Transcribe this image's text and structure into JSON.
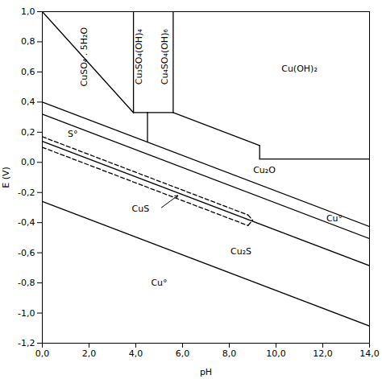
{
  "chart_data": {
    "type": "line",
    "xlabel": "pH",
    "ylabel": "E (V)",
    "xlim": [
      0,
      14
    ],
    "ylim": [
      -1.2,
      1.0
    ],
    "xticks": [
      {
        "value": 0,
        "label": "0,0"
      },
      {
        "value": 2,
        "label": "2,0"
      },
      {
        "value": 4,
        "label": "4,0"
      },
      {
        "value": 6,
        "label": "6,0"
      },
      {
        "value": 8,
        "label": "8,0"
      },
      {
        "value": 10,
        "label": "10,0"
      },
      {
        "value": 12,
        "label": "12,0"
      },
      {
        "value": 14,
        "label": "14,0"
      }
    ],
    "yticks": [
      {
        "value": -1.2,
        "label": "-1,2"
      },
      {
        "value": -1.0,
        "label": "-1,0"
      },
      {
        "value": -0.8,
        "label": "-0,8"
      },
      {
        "value": -0.6,
        "label": "-0,6"
      },
      {
        "value": -0.4,
        "label": "-0,4"
      },
      {
        "value": -0.2,
        "label": "-0,2"
      },
      {
        "value": 0.0,
        "label": "0,0"
      },
      {
        "value": 0.2,
        "label": "0,2"
      },
      {
        "value": 0.4,
        "label": "0,4"
      },
      {
        "value": 0.6,
        "label": "0,6"
      },
      {
        "value": 0.8,
        "label": "0,8"
      },
      {
        "value": 1.0,
        "label": "1,0"
      }
    ],
    "grid": false,
    "series": [
      {
        "x": [
          0,
          14
        ],
        "values": [
          0.4,
          -0.426
        ],
        "line_style": "solid",
        "color": "#000000"
      },
      {
        "x": [
          0,
          14
        ],
        "values": [
          0.32,
          -0.506
        ],
        "line_style": "solid",
        "color": "#000000"
      },
      {
        "x": [
          0,
          14
        ],
        "values": [
          0.14,
          -0.686
        ],
        "line_style": "solid",
        "color": "#000000"
      },
      {
        "x": [
          0,
          14
        ],
        "values": [
          -0.26,
          -1.086
        ],
        "line_style": "solid",
        "color": "#000000"
      },
      {
        "x": [
          0,
          3.9
        ],
        "values": [
          1.0,
          0.33
        ],
        "line_style": "solid",
        "color": "#000000"
      },
      {
        "x": [
          3.9,
          3.9
        ],
        "values": [
          1.0,
          0.33
        ],
        "line_style": "solid",
        "color": "#000000"
      },
      {
        "x": [
          3.9,
          4.5
        ],
        "values": [
          0.33,
          0.33
        ],
        "line_style": "solid",
        "color": "#000000"
      },
      {
        "x": [
          4.5,
          4.5
        ],
        "values": [
          0.33,
          0.135
        ],
        "line_style": "solid",
        "color": "#000000"
      },
      {
        "x": [
          5.6,
          5.6
        ],
        "values": [
          1.0,
          0.33
        ],
        "line_style": "solid",
        "color": "#000000"
      },
      {
        "x": [
          4.5,
          5.6
        ],
        "values": [
          0.33,
          0.33
        ],
        "line_style": "solid",
        "color": "#000000"
      },
      {
        "x": [
          5.6,
          9.3
        ],
        "values": [
          0.33,
          0.1117
        ],
        "line_style": "solid",
        "color": "#000000"
      },
      {
        "x": [
          9.3,
          9.3
        ],
        "values": [
          0.1117,
          0.0217
        ],
        "line_style": "solid",
        "color": "#000000"
      },
      {
        "x": [
          9.3,
          14
        ],
        "values": [
          0.0217,
          0.0217
        ],
        "line_style": "solid",
        "color": "#000000"
      },
      {
        "x": [
          0,
          8.8
        ],
        "values": [
          0.17,
          -0.3492
        ],
        "line_style": "dashed",
        "color": "#000000"
      },
      {
        "x": [
          0,
          8.8
        ],
        "values": [
          0.1,
          -0.4192
        ],
        "line_style": "dashed",
        "color": "#000000"
      },
      {
        "x": [
          8.8,
          9.0
        ],
        "values": [
          -0.3492,
          -0.3842
        ],
        "line_style": "dashed",
        "color": "#000000"
      },
      {
        "x": [
          8.8,
          9.0
        ],
        "values": [
          -0.4192,
          -0.3842
        ],
        "line_style": "dashed",
        "color": "#000000"
      }
    ],
    "annotations": [
      {
        "text": "CuSO₄ . 5H₂O",
        "x": 1.8,
        "y": 0.7,
        "orientation": "vertical"
      },
      {
        "text": "Cu₃SO₄(OH)₄",
        "x": 4.15,
        "y": 0.7,
        "orientation": "vertical"
      },
      {
        "text": "Cu₄SO₄(OH)₆",
        "x": 5.25,
        "y": 0.7,
        "orientation": "vertical"
      },
      {
        "text": "Cu(OH)₂",
        "x": 11.0,
        "y": 0.62,
        "orientation": "horizontal"
      },
      {
        "text": "Cu₂O",
        "x": 9.5,
        "y": -0.05,
        "orientation": "horizontal"
      },
      {
        "text": "CuS",
        "x": 4.2,
        "y": -0.31,
        "orientation": "horizontal"
      },
      {
        "text": "Cu₂S",
        "x": 8.5,
        "y": -0.59,
        "orientation": "horizontal"
      },
      {
        "text": "Cu°",
        "x": 5.0,
        "y": -0.8,
        "orientation": "horizontal"
      },
      {
        "text": "Cu°",
        "x": 12.5,
        "y": -0.37,
        "orientation": "horizontal"
      },
      {
        "text": "S°",
        "x": 1.3,
        "y": 0.19,
        "orientation": "horizontal"
      }
    ],
    "arrows": [
      {
        "x1": 5.1,
        "y1": -0.3,
        "x2": 5.8,
        "y2": -0.22
      }
    ]
  }
}
